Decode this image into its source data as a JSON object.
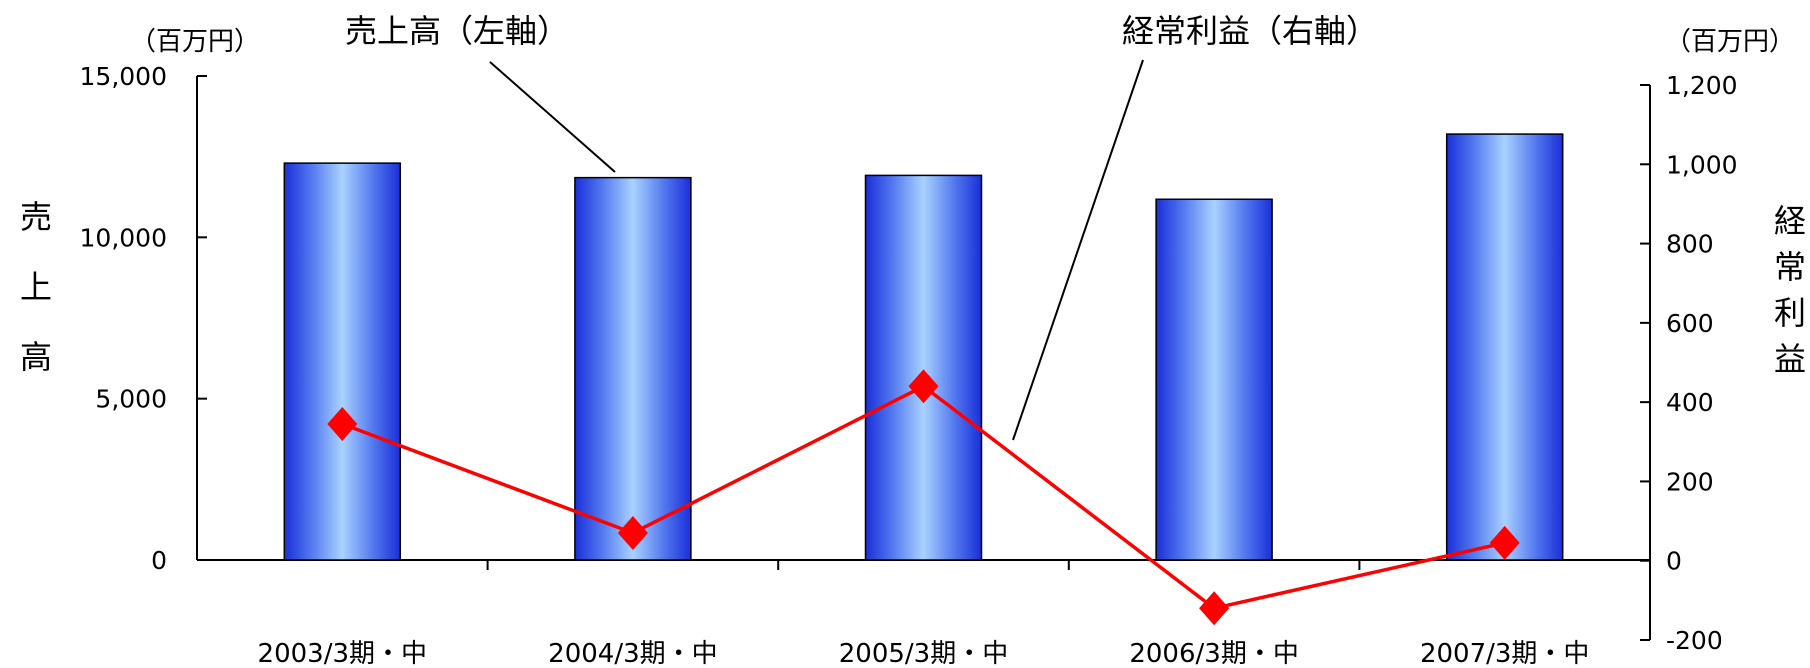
{
  "chart_data": {
    "type": "bar",
    "categories": [
      "2003/3期・中",
      "2004/3期・中",
      "2005/3期・中",
      "2006/3期・中",
      "2007/3期・中"
    ],
    "series": [
      {
        "name": "売上高（左軸）",
        "type": "bar",
        "axis": "left",
        "values": [
          12300,
          11850,
          11920,
          11180,
          13200
        ],
        "color": "#3355ee"
      },
      {
        "name": "経常利益（右軸）",
        "type": "line",
        "axis": "right",
        "values": [
          345,
          70,
          440,
          -120,
          45
        ],
        "color": "#ff0000"
      }
    ],
    "left_axis": {
      "unit": "（百万円）",
      "title": "売上高",
      "ylim": [
        0,
        15000
      ],
      "ticks": [
        "15,000",
        "10,000",
        "5,000",
        "0"
      ],
      "tick_values": [
        15000,
        10000,
        5000,
        0
      ]
    },
    "right_axis": {
      "unit": "（百万円）",
      "title": "経常利益",
      "ylim": [
        -200,
        1200
      ],
      "ticks": [
        "1,200",
        "1,000",
        "800",
        "600",
        "400",
        "200",
        "0",
        "-200"
      ],
      "tick_values": [
        1200,
        1000,
        800,
        600,
        400,
        200,
        0,
        -200
      ]
    },
    "grid": false,
    "legend": "callout-labels"
  }
}
